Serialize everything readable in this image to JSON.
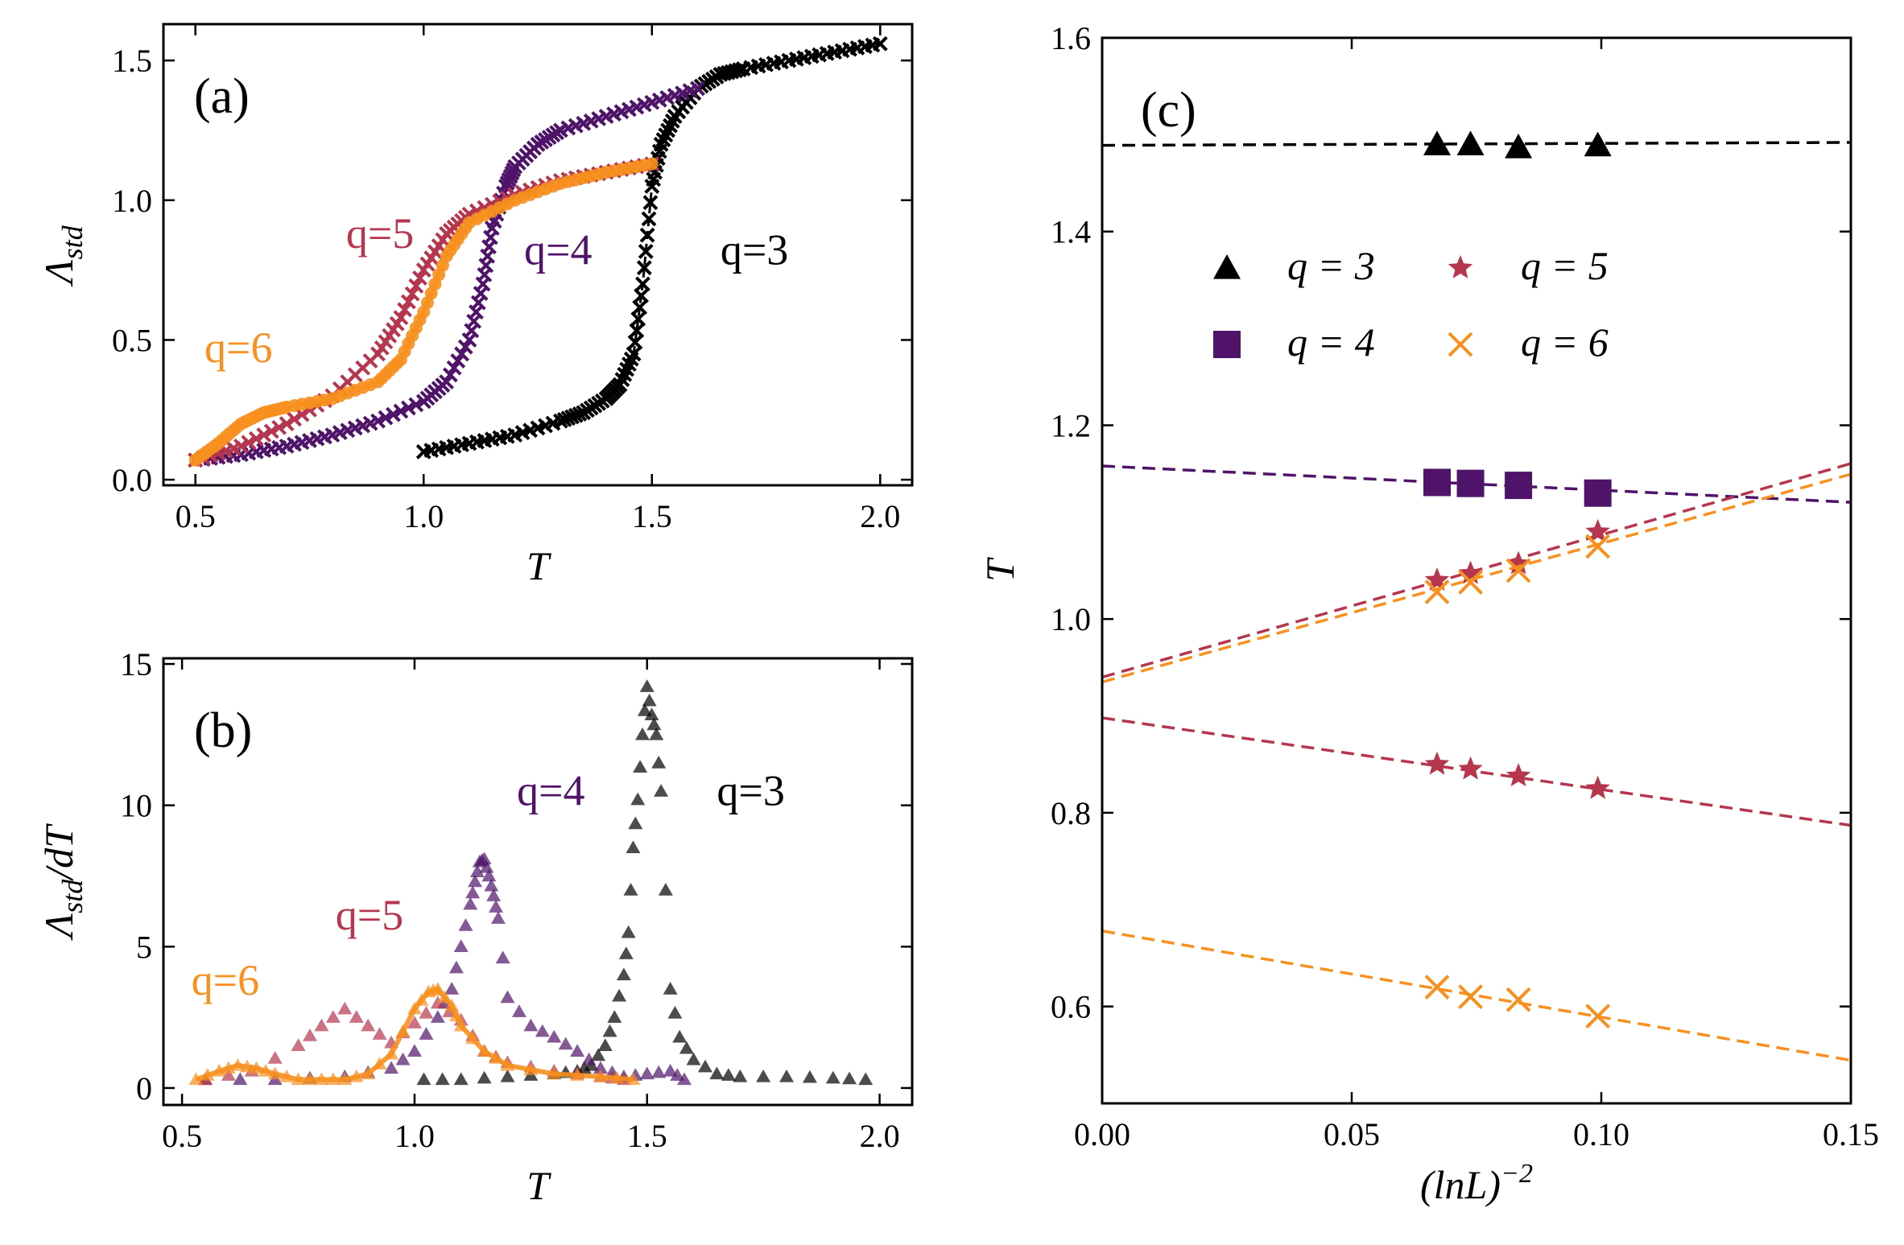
{
  "colors": {
    "q3": "#000000",
    "q4": "#4f1469",
    "q5": "#b5364e",
    "q6": "#f7901e"
  },
  "chart_data": [
    {
      "id": "a",
      "type": "scatter",
      "panel_label": "(a)",
      "xlabel": "T",
      "ylabel": "Λ_std",
      "ylabel_main": "Λ",
      "ylabel_sub": "std",
      "xlim": [
        0.43,
        2.07
      ],
      "ylim": [
        -0.02,
        1.63
      ],
      "xticks": [
        0.5,
        1.0,
        1.5,
        2.0
      ],
      "xtick_labels": [
        "0.5",
        "1.0",
        "1.5",
        "2.0"
      ],
      "yticks": [
        0.0,
        0.5,
        1.0,
        1.5
      ],
      "ytick_labels": [
        "0.0",
        "0.5",
        "1.0",
        "1.5"
      ],
      "annotations": [
        {
          "text": "q=5",
          "series": "q5",
          "x": 0.83,
          "y": 0.83
        },
        {
          "text": "q=4",
          "series": "q4",
          "x": 1.22,
          "y": 0.77
        },
        {
          "text": "q=3",
          "series": "q3",
          "x": 1.65,
          "y": 0.77
        },
        {
          "text": "q=6",
          "series": "q6",
          "x": 0.52,
          "y": 0.42
        }
      ],
      "series": [
        {
          "name": "q=3",
          "key": "q3",
          "marker": "x",
          "x": [
            1.0,
            1.1,
            1.2,
            1.3,
            1.35,
            1.4,
            1.43,
            1.46,
            1.48,
            1.5,
            1.52,
            1.55,
            1.6,
            1.65,
            1.7,
            1.8,
            1.9,
            2.0
          ],
          "y": [
            0.1,
            0.13,
            0.16,
            0.21,
            0.24,
            0.29,
            0.34,
            0.45,
            0.7,
            1.05,
            1.2,
            1.3,
            1.4,
            1.45,
            1.47,
            1.5,
            1.53,
            1.56
          ]
        },
        {
          "name": "q=4",
          "key": "q4",
          "marker": "x",
          "x": [
            0.5,
            0.6,
            0.7,
            0.8,
            0.9,
            1.0,
            1.05,
            1.1,
            1.13,
            1.15,
            1.18,
            1.2,
            1.25,
            1.3,
            1.4,
            1.5,
            1.6
          ],
          "y": [
            0.07,
            0.09,
            0.12,
            0.16,
            0.21,
            0.28,
            0.35,
            0.5,
            0.7,
            0.9,
            1.05,
            1.12,
            1.2,
            1.25,
            1.3,
            1.35,
            1.4
          ]
        },
        {
          "name": "q=5",
          "key": "q5",
          "marker": "x",
          "x": [
            0.5,
            0.6,
            0.7,
            0.8,
            0.9,
            0.95,
            1.0,
            1.05,
            1.1,
            1.2,
            1.3,
            1.4,
            1.5
          ],
          "y": [
            0.07,
            0.12,
            0.2,
            0.3,
            0.45,
            0.58,
            0.75,
            0.88,
            0.95,
            1.02,
            1.07,
            1.1,
            1.13
          ]
        },
        {
          "name": "q=6",
          "key": "q6",
          "marker": "o",
          "x": [
            0.5,
            0.55,
            0.6,
            0.65,
            0.7,
            0.8,
            0.9,
            0.95,
            1.0,
            1.05,
            1.1,
            1.2,
            1.3,
            1.4,
            1.5
          ],
          "y": [
            0.07,
            0.13,
            0.2,
            0.24,
            0.26,
            0.29,
            0.35,
            0.43,
            0.6,
            0.8,
            0.92,
            1.0,
            1.06,
            1.1,
            1.13
          ]
        }
      ]
    },
    {
      "id": "b",
      "type": "scatter",
      "panel_label": "(b)",
      "xlabel": "T",
      "ylabel": "Λ_std/dT",
      "ylabel_main": "Λ",
      "ylabel_sub": "std",
      "ylabel_tail": "/dT",
      "xlim": [
        0.46,
        2.07
      ],
      "ylim": [
        -0.6,
        15.2
      ],
      "xticks": [
        0.5,
        1.0,
        1.5,
        2.0
      ],
      "xtick_labels": [
        "0.5",
        "1.0",
        "1.5",
        "2.0"
      ],
      "yticks": [
        0,
        5,
        10,
        15
      ],
      "ytick_labels": [
        "0",
        "5",
        "10",
        "15"
      ],
      "annotations": [
        {
          "text": "q=4",
          "series": "q4",
          "x": 1.22,
          "y": 10.0
        },
        {
          "text": "q=3",
          "series": "q3",
          "x": 1.65,
          "y": 10.0
        },
        {
          "text": "q=5",
          "series": "q5",
          "x": 0.83,
          "y": 5.6
        },
        {
          "text": "q=6",
          "series": "q6",
          "x": 0.52,
          "y": 3.3
        }
      ],
      "series": [
        {
          "name": "q=3",
          "key": "q3",
          "marker": "triangle",
          "x": [
            1.02,
            1.1,
            1.2,
            1.3,
            1.35,
            1.38,
            1.41,
            1.43,
            1.45,
            1.46,
            1.47,
            1.48,
            1.49,
            1.5,
            1.51,
            1.52,
            1.53,
            1.55,
            1.57,
            1.6,
            1.65,
            1.7,
            1.8,
            1.9,
            1.97
          ],
          "y": [
            0.3,
            0.3,
            0.4,
            0.5,
            0.6,
            0.8,
            1.5,
            2.5,
            4.0,
            5.5,
            8.5,
            10.2,
            12.5,
            14.2,
            13.2,
            12.5,
            10.5,
            3.5,
            1.8,
            1.0,
            0.5,
            0.4,
            0.4,
            0.35,
            0.3
          ]
        },
        {
          "name": "q=4",
          "key": "q4",
          "marker": "triangle",
          "x": [
            0.55,
            0.7,
            0.85,
            0.95,
            1.0,
            1.05,
            1.08,
            1.1,
            1.12,
            1.13,
            1.14,
            1.15,
            1.16,
            1.17,
            1.18,
            1.2,
            1.25,
            1.3,
            1.35,
            1.4,
            1.45,
            1.5,
            1.55,
            1.58
          ],
          "y": [
            0.3,
            0.3,
            0.4,
            0.7,
            1.3,
            2.5,
            3.5,
            5.0,
            6.5,
            7.3,
            8.0,
            8.1,
            7.5,
            6.8,
            6.0,
            3.2,
            2.2,
            1.8,
            1.3,
            0.7,
            0.4,
            0.5,
            0.6,
            0.3
          ]
        },
        {
          "name": "q=5",
          "key": "q5",
          "marker": "triangle",
          "x": [
            0.55,
            0.65,
            0.75,
            0.8,
            0.85,
            0.9,
            0.95,
            1.0,
            1.05,
            1.1,
            1.15,
            1.2,
            1.3,
            1.4,
            1.45
          ],
          "y": [
            0.3,
            0.6,
            1.5,
            2.2,
            2.8,
            2.2,
            1.6,
            2.3,
            3.0,
            2.4,
            1.3,
            0.9,
            0.6,
            0.4,
            0.3
          ]
        },
        {
          "name": "q=6",
          "key": "q6",
          "marker": "triangle-line",
          "x": [
            0.53,
            0.58,
            0.62,
            0.66,
            0.7,
            0.75,
            0.8,
            0.85,
            0.9,
            0.95,
            1.0,
            1.03,
            1.05,
            1.08,
            1.1,
            1.15,
            1.2,
            1.3,
            1.4,
            1.47
          ],
          "y": [
            0.3,
            0.6,
            0.8,
            0.7,
            0.5,
            0.3,
            0.3,
            0.3,
            0.5,
            1.2,
            2.8,
            3.4,
            3.5,
            2.9,
            2.2,
            1.3,
            0.8,
            0.5,
            0.4,
            0.3
          ]
        }
      ]
    },
    {
      "id": "c",
      "type": "scatter",
      "panel_label": "(c)",
      "xlabel": "(ln L)^-2",
      "xlabel_main": "(ln",
      "xlabel_var": "L",
      "xlabel_close": ")",
      "xlabel_exp": "−2",
      "ylabel": "T",
      "xlim": [
        0.0,
        0.15
      ],
      "ylim": [
        0.5,
        1.6
      ],
      "xticks": [
        0.0,
        0.05,
        0.1,
        0.15
      ],
      "xtick_labels": [
        "0.00",
        "0.05",
        "0.10",
        "0.15"
      ],
      "yticks": [
        0.6,
        0.8,
        1.0,
        1.2,
        1.4,
        1.6
      ],
      "ytick_labels": [
        "0.6",
        "0.8",
        "1.0",
        "1.2",
        "1.4",
        "1.6"
      ],
      "legend": [
        {
          "key": "q3",
          "marker": "triangle",
          "label": "q = 3"
        },
        {
          "key": "q5",
          "marker": "star",
          "label": "q = 5"
        },
        {
          "key": "q4",
          "marker": "square",
          "label": "q = 4"
        },
        {
          "key": "q6",
          "marker": "x",
          "label": "q = 6"
        }
      ],
      "legend_position": "upper-center",
      "series": [
        {
          "name": "q=3",
          "key": "q3",
          "marker": "triangle",
          "x": [
            0.0671,
            0.0738,
            0.0834,
            0.0993
          ],
          "y": [
            1.49,
            1.49,
            1.487,
            1.489
          ],
          "fit": {
            "intercept": 1.489,
            "slope": 0.02
          }
        },
        {
          "name": "q=4",
          "key": "q4",
          "marker": "square",
          "x": [
            0.0671,
            0.0738,
            0.0834,
            0.0993
          ],
          "y": [
            1.141,
            1.14,
            1.138,
            1.13
          ],
          "fit": {
            "intercept": 1.158,
            "slope": -0.25
          }
        },
        {
          "name": "q=5",
          "key": "q5",
          "marker": "star",
          "x": [
            0.0671,
            0.0738,
            0.0834,
            0.0993
          ],
          "y": [
            1.04,
            1.047,
            1.057,
            1.09
          ],
          "fit": {
            "intercept": 0.94,
            "slope": 1.47
          }
        },
        {
          "name": "q=5",
          "key": "q5",
          "marker": "star",
          "x": [
            0.0671,
            0.0738,
            0.0834,
            0.0993
          ],
          "y": [
            0.85,
            0.845,
            0.838,
            0.825
          ],
          "fit": {
            "intercept": 0.898,
            "slope": -0.74
          }
        },
        {
          "name": "q=6",
          "key": "q6",
          "marker": "x",
          "x": [
            0.0671,
            0.0738,
            0.0834,
            0.0993
          ],
          "y": [
            1.028,
            1.038,
            1.05,
            1.075
          ],
          "fit": {
            "intercept": 0.935,
            "slope": 1.43
          }
        },
        {
          "name": "q=6",
          "key": "q6",
          "marker": "x",
          "x": [
            0.0671,
            0.0738,
            0.0834,
            0.0993
          ],
          "y": [
            0.62,
            0.61,
            0.607,
            0.59
          ],
          "fit": {
            "intercept": 0.678,
            "slope": -0.89
          }
        }
      ]
    }
  ]
}
